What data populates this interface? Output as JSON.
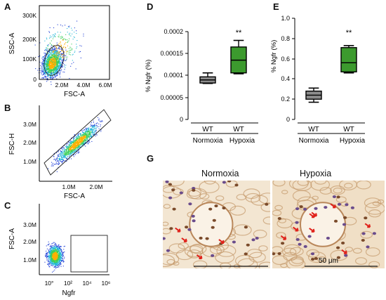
{
  "panels": {
    "A": {
      "label": "A",
      "xlabel": "FSC-A",
      "ylabel": "SSC-A",
      "xticks": [
        "0",
        "2.0M",
        "4.0M",
        "6.0M"
      ],
      "yticks": [
        "0",
        "100K",
        "200K",
        "300K"
      ]
    },
    "B": {
      "label": "B",
      "xlabel": "FSC-A",
      "ylabel": "FSC-H",
      "xticks": [
        "1.0M",
        "2.0M"
      ],
      "yticks": [
        "1.0M",
        "2.0M",
        "3.0M"
      ]
    },
    "C": {
      "label": "C",
      "xlabel": "Ngfr",
      "ylabel": "FSC-A",
      "xticks": [
        "10°",
        "10²",
        "10⁴",
        "10⁶"
      ],
      "yticks": [
        "1.0M",
        "2.0M",
        "3.0M"
      ]
    },
    "D": {
      "label": "D",
      "ylabel": "% Ngfr (%)",
      "signif": "**",
      "yticks": [
        "0",
        "0.00005",
        "0.0001",
        "0.00015",
        "0.0002"
      ],
      "group_labels": [
        "WT",
        "WT"
      ],
      "condition_labels": [
        "Normoxia",
        "Hypoxia"
      ]
    },
    "E": {
      "label": "E",
      "ylabel": "% Ngfr (%)",
      "signif": "**",
      "yticks": [
        "0",
        "0.2",
        "0.4",
        "0.6",
        "0.8",
        "1.0"
      ],
      "group_labels": [
        "WT",
        "WT"
      ],
      "condition_labels": [
        "Normoxia",
        "Hypoxia"
      ]
    },
    "G": {
      "label": "G",
      "titles": [
        "Normoxia",
        "Hypoxia"
      ],
      "scale_bar": "50 μm"
    }
  },
  "colors": {
    "normoxia_box": "#8c8c8c",
    "hypoxia_box": "#3c9a2e",
    "gate": "#000000"
  },
  "chart_data": [
    {
      "type": "scatter",
      "panel": "A",
      "title": "",
      "xlabel": "FSC-A",
      "ylabel": "SSC-A",
      "xlim": [
        0,
        6000000
      ],
      "ylim": [
        0,
        300000
      ],
      "note_density": "dense blue population near FSC 0.3M-1.5M, SSC 20K-110K",
      "gate": "ellipse-shaped gate around main population"
    },
    {
      "type": "scatter",
      "panel": "B",
      "title": "",
      "xlabel": "FSC-A",
      "ylabel": "FSC-H",
      "xlim": [
        0,
        2500000
      ],
      "ylim": [
        0,
        3500000
      ],
      "gate": "diagonal singlet gate"
    },
    {
      "type": "scatter",
      "panel": "C",
      "title": "",
      "xlabel": "Ngfr",
      "ylabel": "FSC-A",
      "xscale": "log",
      "xlim": [
        1,
        1000000
      ],
      "ylim": [
        0,
        3500000
      ],
      "gate": "Ngfr-positive rectangle from 10^2 upward"
    },
    {
      "type": "box",
      "panel": "D",
      "ylabel": "% Ngfr (%)",
      "ylim": [
        0,
        0.0002
      ],
      "categories": [
        "Normoxia",
        "Hypoxia"
      ],
      "series": [
        {
          "name": "Normoxia",
          "min": 8.2e-05,
          "q1": 8.3e-05,
          "median": 9e-05,
          "q3": 9.7e-05,
          "max": 0.000106
        },
        {
          "name": "Hypoxia",
          "min": 0.000104,
          "q1": 0.000106,
          "median": 0.000135,
          "q3": 0.000165,
          "max": 0.00018
        }
      ]
    },
    {
      "type": "box",
      "panel": "E",
      "ylabel": "% Ngfr (%)",
      "ylim": [
        0,
        1.0
      ],
      "categories": [
        "Normoxia",
        "Hypoxia"
      ],
      "series": [
        {
          "name": "Normoxia",
          "min": 0.17,
          "q1": 0.2,
          "median": 0.24,
          "q3": 0.28,
          "max": 0.31
        },
        {
          "name": "Hypoxia",
          "min": 0.46,
          "q1": 0.47,
          "median": 0.56,
          "q3": 0.71,
          "max": 0.73
        }
      ]
    }
  ]
}
